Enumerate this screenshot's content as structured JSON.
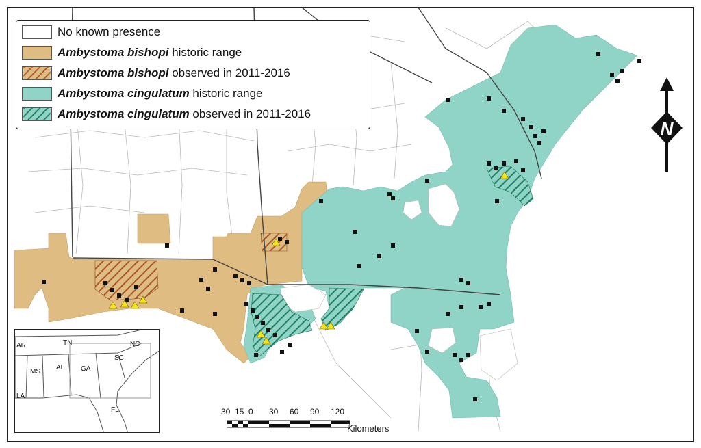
{
  "legend": {
    "none": "No known presence",
    "bishopi_hist_sp": "Ambystoma bishopi",
    "bishopi_hist_rest": " historic range",
    "bishopi_obs_sp": "Ambystoma bishopi",
    "bishopi_obs_rest": " observed in 2011-2016",
    "cing_hist_sp": "Ambystoma cingulatum",
    "cing_hist_rest": " historic range",
    "cing_obs_sp": "Ambystoma cingulatum",
    "cing_obs_rest": " observed in 2011-2016"
  },
  "colors": {
    "bishopi": "#dfbc82",
    "bishopi_hatch": "#a8582a",
    "cingulatum": "#8fd4c6",
    "cingulatum_hatch": "#1f7f63",
    "county_line": "#b8b8b8",
    "state_line": "#444444"
  },
  "inset": {
    "states": [
      "AR",
      "TN",
      "NC",
      "MS",
      "AL",
      "GA",
      "SC",
      "LA",
      "FL"
    ]
  },
  "scalebar": {
    "ticks": [
      "30",
      "15",
      "0",
      "30",
      "60",
      "90",
      "120"
    ],
    "unit": "Kilometers"
  },
  "north": {
    "label": "N"
  }
}
